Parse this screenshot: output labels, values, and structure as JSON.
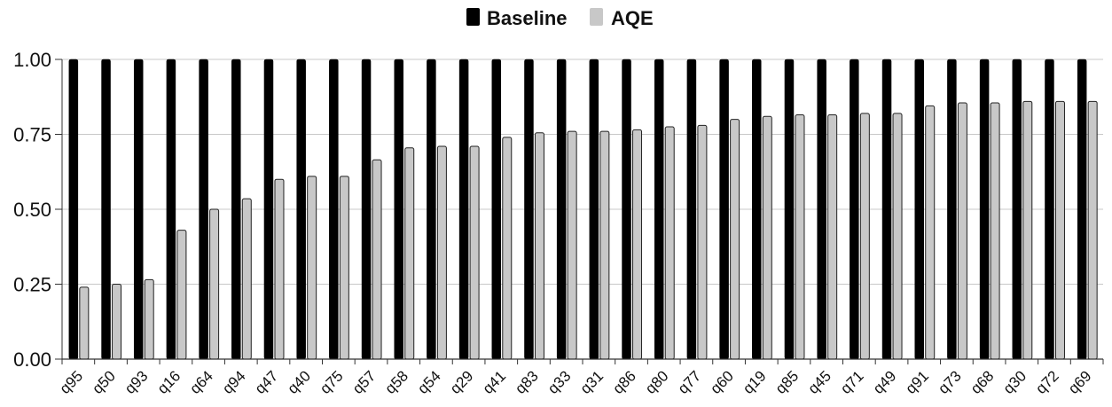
{
  "chart_data": {
    "type": "bar",
    "title": "",
    "xlabel": "",
    "ylabel": "",
    "ylim": [
      0,
      1
    ],
    "yticks": [
      "0.00",
      "0.25",
      "0.50",
      "0.75",
      "1.00"
    ],
    "grid": "horizontal",
    "legend_position": "top-center",
    "categories": [
      "q95",
      "q50",
      "q93",
      "q16",
      "q64",
      "q94",
      "q47",
      "q40",
      "q75",
      "q57",
      "q58",
      "q54",
      "q29",
      "q41",
      "q83",
      "q33",
      "q31",
      "q86",
      "q80",
      "q77",
      "q60",
      "q19",
      "q85",
      "q45",
      "q71",
      "q49",
      "q91",
      "q73",
      "q68",
      "q30",
      "q72",
      "q69"
    ],
    "series": [
      {
        "name": "Baseline",
        "color": "#000000",
        "values": [
          1,
          1,
          1,
          1,
          1,
          1,
          1,
          1,
          1,
          1,
          1,
          1,
          1,
          1,
          1,
          1,
          1,
          1,
          1,
          1,
          1,
          1,
          1,
          1,
          1,
          1,
          1,
          1,
          1,
          1,
          1,
          1
        ]
      },
      {
        "name": "AQE",
        "color": "#c8c8c8",
        "values": [
          0.24,
          0.25,
          0.265,
          0.43,
          0.5,
          0.535,
          0.6,
          0.61,
          0.61,
          0.665,
          0.705,
          0.71,
          0.71,
          0.74,
          0.755,
          0.76,
          0.76,
          0.765,
          0.775,
          0.78,
          0.8,
          0.81,
          0.815,
          0.815,
          0.82,
          0.82,
          0.845,
          0.855,
          0.855,
          0.86,
          0.86,
          0.86
        ]
      }
    ]
  }
}
